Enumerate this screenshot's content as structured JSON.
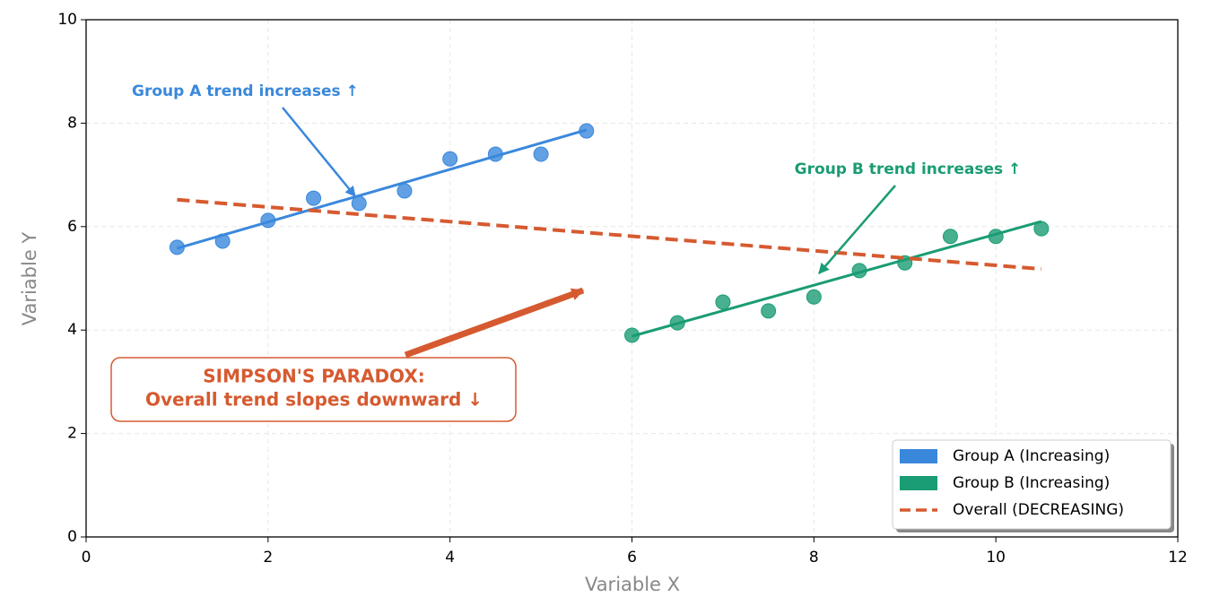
{
  "chart_data": {
    "type": "scatter",
    "xlabel": "Variable X",
    "ylabel": "Variable Y",
    "xlim": [
      0,
      12
    ],
    "ylim": [
      0,
      10
    ],
    "xticks": [
      0,
      2,
      4,
      6,
      8,
      10,
      12
    ],
    "yticks": [
      0,
      2,
      4,
      6,
      8,
      10
    ],
    "grid": true,
    "legend_loc": "lower right",
    "series": [
      {
        "name": "Group A (Increasing)",
        "color": "#3a88dc",
        "x": [
          1,
          1.5,
          2,
          2.5,
          3,
          3.5,
          4,
          4.5,
          5,
          5.5
        ],
        "values": [
          5.6,
          5.72,
          6.12,
          6.55,
          6.45,
          6.69,
          7.31,
          7.4,
          7.4,
          7.85
        ],
        "trend_x": [
          1,
          5.5
        ],
        "trend_values": [
          5.58,
          7.87
        ]
      },
      {
        "name": "Group B (Increasing)",
        "color": "#1a9c74",
        "x": [
          6,
          6.5,
          7,
          7.5,
          8,
          8.5,
          9,
          9.5,
          10,
          10.5
        ],
        "values": [
          3.9,
          4.14,
          4.54,
          4.37,
          4.64,
          5.15,
          5.3,
          5.81,
          5.81,
          5.96
        ],
        "trend_x": [
          6,
          10.5
        ],
        "trend_values": [
          3.88,
          6.1
        ]
      }
    ],
    "overall": {
      "name": "Overall (DECREASING)",
      "color": "#d65a30",
      "x": [
        1,
        10.5
      ],
      "values": [
        6.52,
        5.18
      ]
    },
    "annotations": [
      "Group A trend increases ↑",
      "Group B trend increases ↑",
      "SIMPSON'S PARADOX:",
      "Overall trend slopes downward ↓"
    ]
  }
}
